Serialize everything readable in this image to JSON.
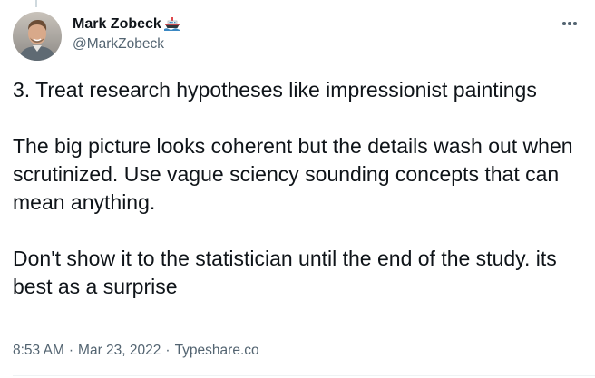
{
  "author": {
    "display_name": "Mark Zobeck",
    "handle": "@MarkZobeck",
    "name_emoji_icon": "ship-icon",
    "avatar_icon": "profile-photo"
  },
  "menu": {
    "icon": "more-horizontal-icon"
  },
  "tweet": {
    "paragraphs": [
      "3. Treat research hypotheses like impressionist paintings",
      "The big picture looks coherent but the details wash out when scrutinized. Use vague sciency sounding concepts that can mean anything.",
      "Don't show it to the statistician until the end of the study. its best as a surprise"
    ]
  },
  "meta": {
    "time": "8:53 AM",
    "separator": "·",
    "date": "Mar 23, 2022",
    "source": "Typeshare.co"
  },
  "colors": {
    "text_primary": "#0f1419",
    "text_secondary": "#536471",
    "divider": "#cfd9de"
  }
}
